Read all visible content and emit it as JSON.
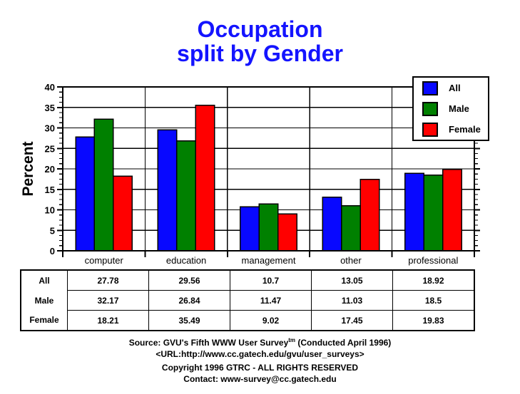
{
  "title": {
    "line1": "Occupation",
    "line2": "split by Gender",
    "color": "#1414ff"
  },
  "chart_data": {
    "type": "bar",
    "title": "Occupation split by Gender",
    "categories": [
      "computer",
      "education",
      "management",
      "other",
      "professional"
    ],
    "series": [
      {
        "name": "All",
        "color": "#0808ff",
        "values": [
          27.78,
          29.56,
          10.7,
          13.05,
          18.92
        ]
      },
      {
        "name": "Male",
        "color": "#008000",
        "values": [
          32.17,
          26.84,
          11.47,
          11.03,
          18.5
        ]
      },
      {
        "name": "Female",
        "color": "#ff0000",
        "values": [
          18.21,
          35.49,
          9.02,
          17.45,
          19.83
        ]
      }
    ],
    "xlabel": "",
    "ylabel": "Percent",
    "ylim": [
      0,
      40
    ],
    "ytick_step": 5,
    "minor_ticks_per_interval": 4,
    "grid": true,
    "legend_position": "top-right",
    "legend_entries": [
      "All",
      "Male",
      "Female"
    ]
  },
  "table": {
    "rows": [
      {
        "label": "All",
        "values": [
          "27.78",
          "29.56",
          "10.7",
          "13.05",
          "18.92"
        ]
      },
      {
        "label": "Male",
        "values": [
          "32.17",
          "26.84",
          "11.47",
          "11.03",
          "18.5"
        ]
      },
      {
        "label": "Female",
        "values": [
          "18.21",
          "35.49",
          "9.02",
          "17.45",
          "19.83"
        ]
      }
    ]
  },
  "footer": {
    "line1_prefix": "Source: GVU's Fifth WWW User Survey",
    "line1_sup": "tm",
    "line1_suffix": " (Conducted April 1996)",
    "line2": "<URL:http://www.cc.gatech.edu/gvu/user_surveys>",
    "line3": "Copyright 1996 GTRC -  ALL RIGHTS RESERVED",
    "line4": "Contact: www-survey@cc.gatech.edu"
  }
}
